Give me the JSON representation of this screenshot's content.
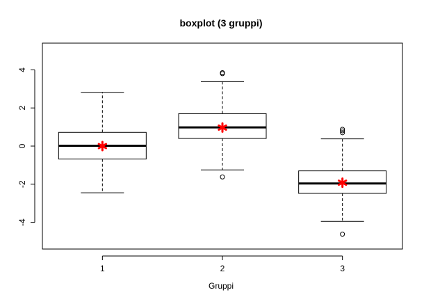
{
  "chart_data": {
    "type": "boxplot",
    "title": "boxplot (3 gruppi)",
    "xlabel": "Gruppi",
    "ylabel": "",
    "categories": [
      "1",
      "2",
      "3"
    ],
    "ylim": [
      -5.4,
      5.4
    ],
    "y_ticks": [
      -4,
      -2,
      0,
      2,
      4
    ],
    "y_tick_labels": [
      "-4",
      "-2",
      "0",
      "2",
      "4"
    ],
    "grid": false,
    "boxes": [
      {
        "name": "1",
        "whisker_low": -2.45,
        "q1": -0.68,
        "median": 0.02,
        "q3": 0.72,
        "whisker_high": 2.82,
        "outliers": [],
        "mean": 0.0
      },
      {
        "name": "2",
        "whisker_low": -1.25,
        "q1": 0.4,
        "median": 0.98,
        "q3": 1.7,
        "whisker_high": 3.38,
        "outliers": [
          -1.62,
          3.8,
          3.85
        ],
        "mean": 0.97
      },
      {
        "name": "3",
        "whisker_low": -3.95,
        "q1": -2.48,
        "median": -1.96,
        "q3": -1.3,
        "whisker_high": 0.38,
        "outliers": [
          -4.62,
          0.7,
          0.8,
          0.88
        ],
        "mean": -1.92
      }
    ],
    "mean_marker": "*",
    "mean_color": "#ff0000"
  }
}
